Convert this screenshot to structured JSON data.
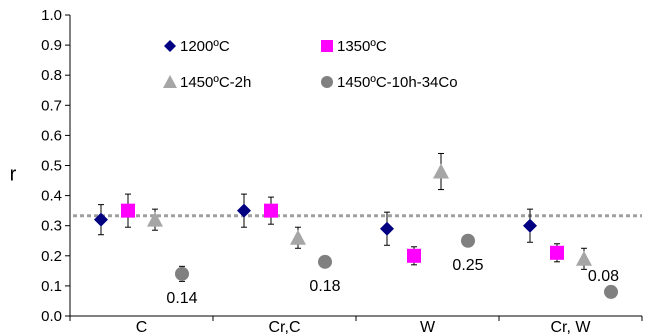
{
  "chart_data": {
    "type": "scatter",
    "ylabel": "r",
    "ylim": [
      0,
      1
    ],
    "yticks": [
      "0.0",
      "0.1",
      "0.2",
      "0.3",
      "0.4",
      "0.5",
      "0.6",
      "0.7",
      "0.8",
      "0.9",
      "1.0"
    ],
    "categories": [
      "C",
      "Cr,C",
      "W",
      "Cr, W"
    ],
    "reference_line": 0.333,
    "series": [
      {
        "name": "1200ºC",
        "marker": "diamond",
        "color": "#000080",
        "values": [
          0.32,
          0.35,
          0.29,
          0.3
        ],
        "errors": [
          0.05,
          0.055,
          0.055,
          0.055
        ]
      },
      {
        "name": "1350ºC",
        "marker": "square",
        "color": "#ff00ff",
        "values": [
          0.35,
          0.35,
          0.2,
          0.21
        ],
        "errors": [
          0.055,
          0.045,
          0.03,
          0.03
        ]
      },
      {
        "name": "1450ºC-2h",
        "marker": "triangle",
        "color": "#a6a6a6",
        "values": [
          0.32,
          0.26,
          0.48,
          0.19
        ],
        "errors": [
          0.035,
          0.035,
          0.06,
          0.035
        ]
      },
      {
        "name": "1450ºC-10h-34Co",
        "marker": "circle",
        "color": "#808080",
        "values": [
          0.14,
          0.18,
          0.25,
          0.08
        ],
        "errors": [
          0.025,
          0.0,
          0.015,
          0.0
        ]
      }
    ],
    "annotations": [
      {
        "text": "0.14",
        "category": 0
      },
      {
        "text": "0.18",
        "category": 1
      },
      {
        "text": "0.25",
        "category": 2
      },
      {
        "text": "0.08",
        "category": 3
      }
    ],
    "legend": "inside-top"
  }
}
